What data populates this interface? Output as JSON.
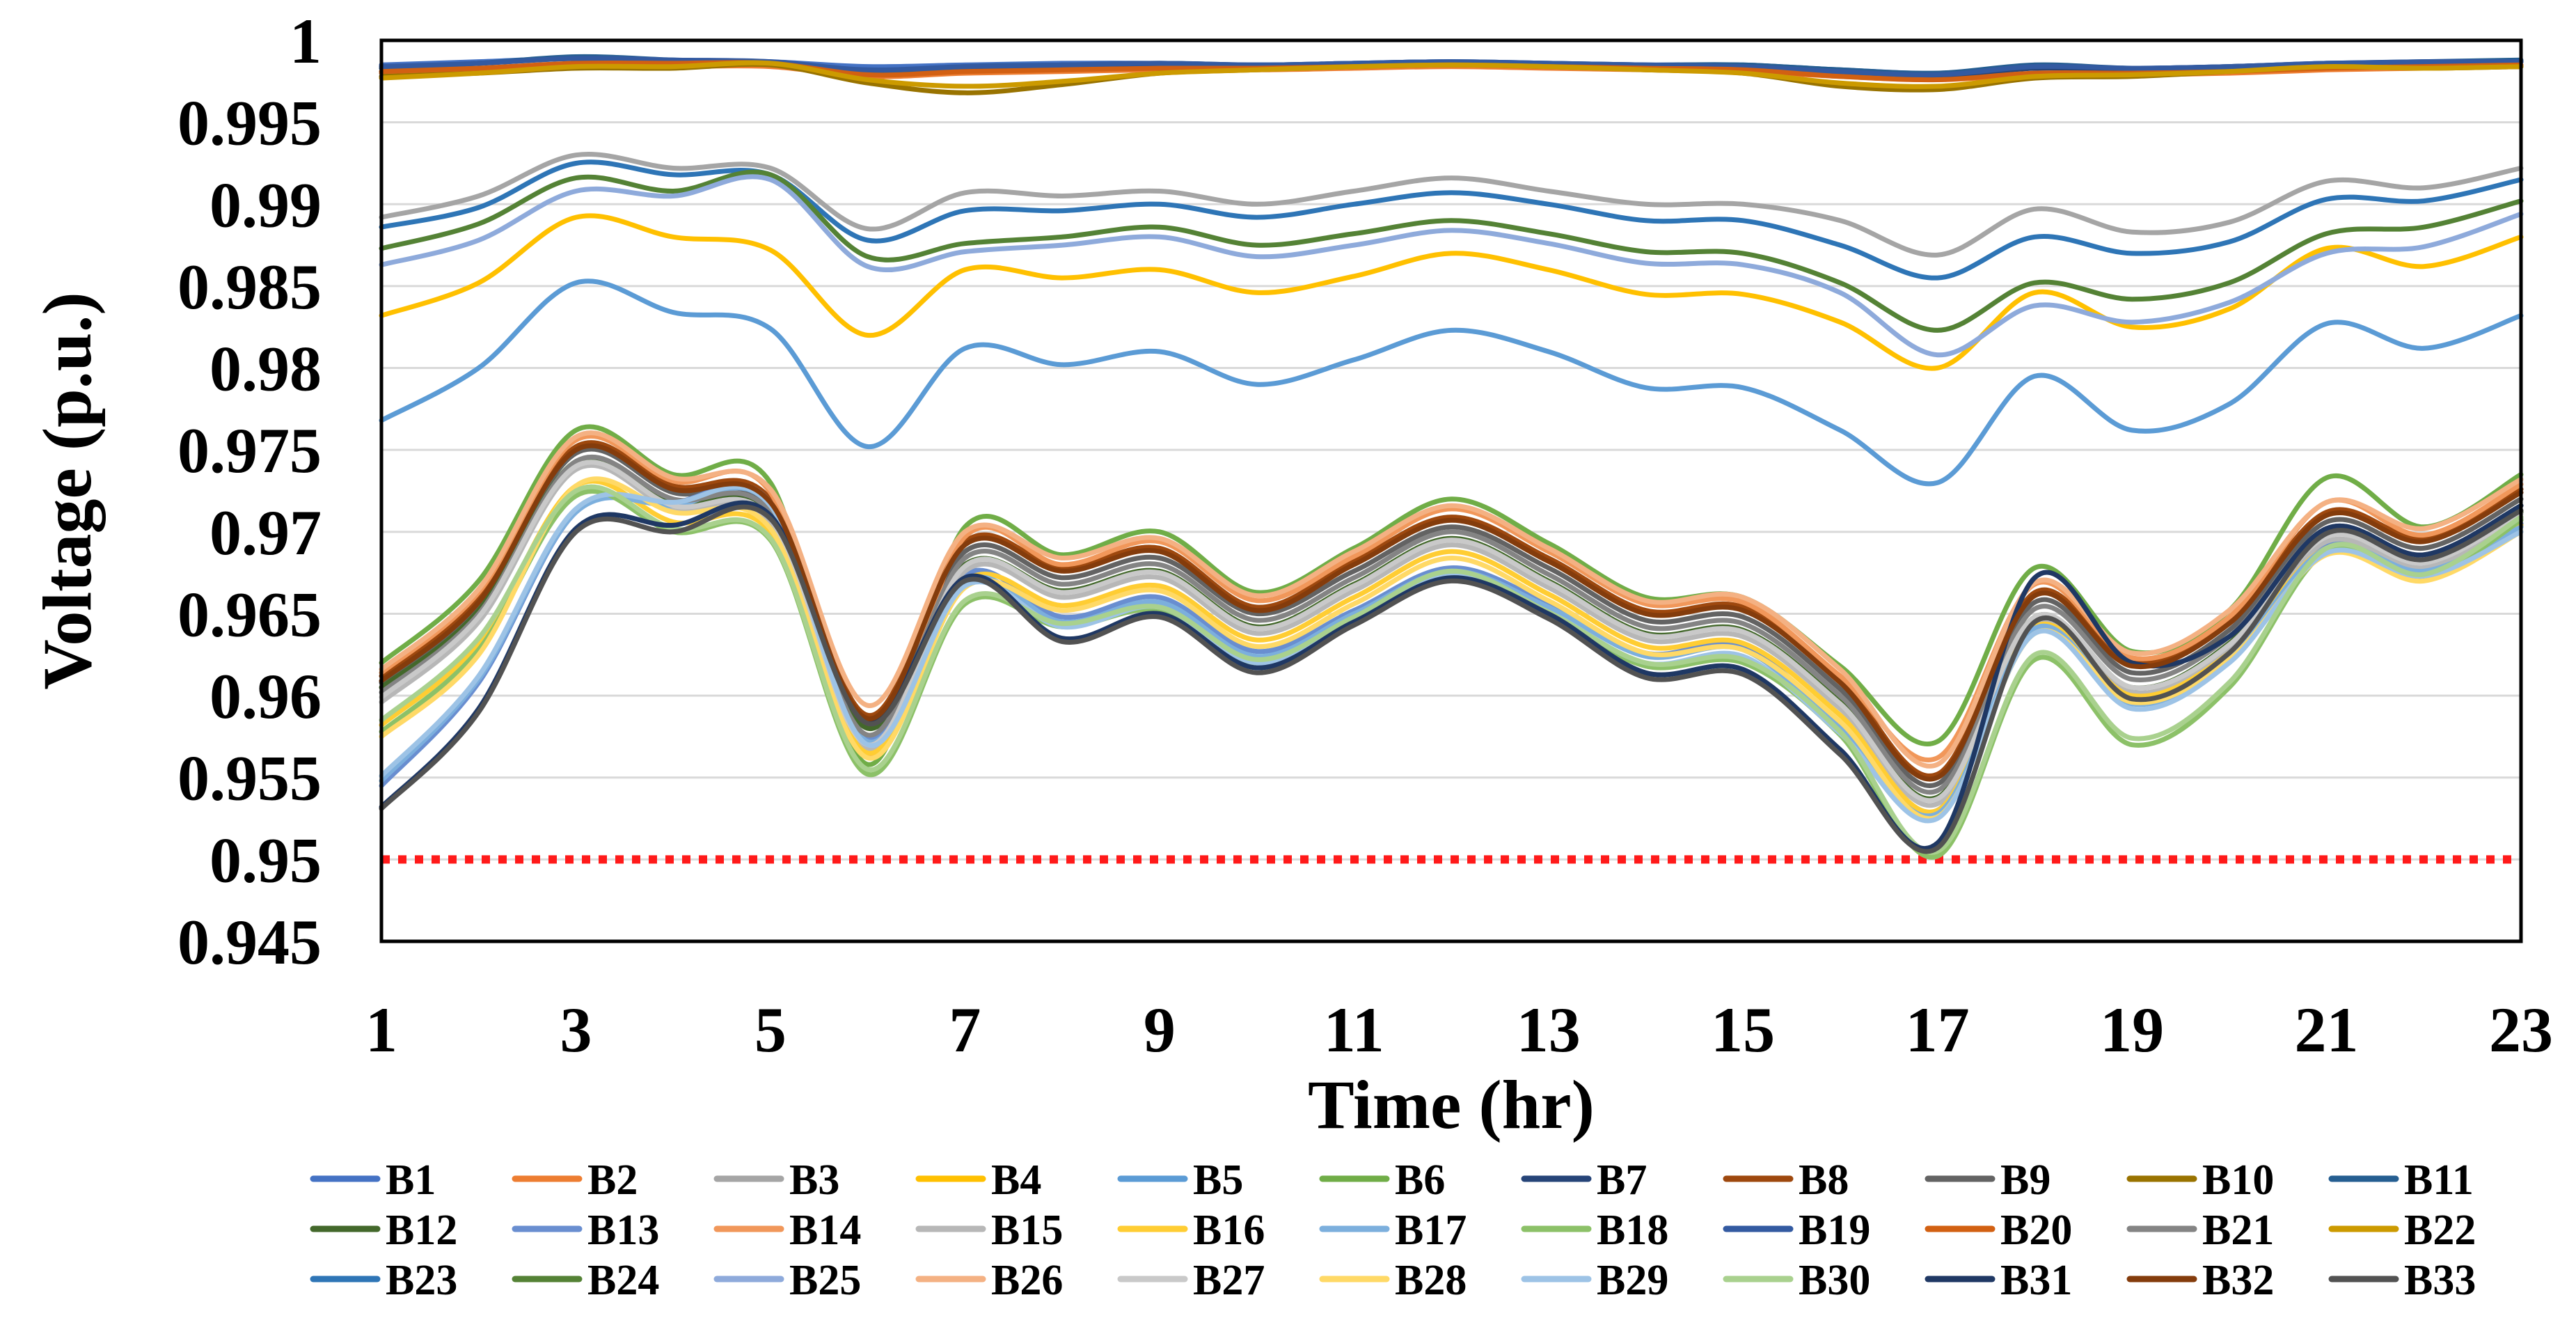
{
  "chart_data": {
    "type": "line",
    "title": "",
    "xlabel": "Time (hr)",
    "ylabel": "Voltage (p.u.)",
    "xlim": [
      1,
      23
    ],
    "ylim": [
      0.945,
      1
    ],
    "x_ticks": [
      "1",
      "3",
      "5",
      "7",
      "9",
      "11",
      "13",
      "15",
      "17",
      "19",
      "21",
      "23"
    ],
    "y_ticks": [
      "0.945",
      "0.95",
      "0.955",
      "0.96",
      "0.965",
      "0.97",
      "0.975",
      "0.98",
      "0.985",
      "0.99",
      "0.995",
      "1"
    ],
    "grid": "horizontal",
    "legend_position": "bottom",
    "limit_line": {
      "value": 0.95,
      "color": "#ff1a1a",
      "style": "dotted"
    },
    "x": [
      1,
      2,
      3,
      4,
      5,
      6,
      7,
      8,
      9,
      10,
      11,
      12,
      13,
      14,
      15,
      16,
      17,
      18,
      19,
      20,
      21,
      22,
      23
    ],
    "series": [
      {
        "name": "B1",
        "color": "#4472c4",
        "values": [
          0.9985,
          0.9987,
          0.9989,
          0.9988,
          0.9987,
          0.9984,
          0.9985,
          0.9986,
          0.9986,
          0.9985,
          0.9986,
          0.9987,
          0.9986,
          0.9985,
          0.9985,
          0.9982,
          0.998,
          0.9984,
          0.9983,
          0.9984,
          0.9986,
          0.9986,
          0.9987
        ]
      },
      {
        "name": "B2",
        "color": "#ed7d31",
        "values": [
          0.998,
          0.9982,
          0.9984,
          0.9984,
          0.9984,
          0.9978,
          0.998,
          0.9981,
          0.9982,
          0.9982,
          0.9983,
          0.9984,
          0.9983,
          0.9982,
          0.9981,
          0.9978,
          0.9976,
          0.9979,
          0.9979,
          0.998,
          0.9982,
          0.9983,
          0.9984
        ]
      },
      {
        "name": "B3",
        "color": "#a5a5a5",
        "values": [
          0.9892,
          0.9905,
          0.993,
          0.9922,
          0.9922,
          0.9885,
          0.9907,
          0.9905,
          0.9908,
          0.99,
          0.9908,
          0.9916,
          0.9908,
          0.99,
          0.99,
          0.989,
          0.9869,
          0.9897,
          0.9883,
          0.9889,
          0.9914,
          0.991,
          0.9922
        ]
      },
      {
        "name": "B4",
        "color": "#ffc000",
        "values": [
          0.9832,
          0.9852,
          0.9892,
          0.988,
          0.9872,
          0.982,
          0.986,
          0.9855,
          0.986,
          0.9846,
          0.9856,
          0.987,
          0.986,
          0.9845,
          0.9845,
          0.9828,
          0.98,
          0.9846,
          0.9825,
          0.9836,
          0.9873,
          0.9862,
          0.988
        ]
      },
      {
        "name": "B5",
        "color": "#5b9bd5",
        "values": [
          0.9768,
          0.98,
          0.9852,
          0.9834,
          0.9824,
          0.9752,
          0.9812,
          0.9802,
          0.981,
          0.979,
          0.9805,
          0.9823,
          0.981,
          0.9788,
          0.9788,
          0.9762,
          0.973,
          0.9795,
          0.9762,
          0.9778,
          0.9827,
          0.9812,
          0.9832
        ]
      },
      {
        "name": "B6",
        "color": "#70ad47",
        "values": [
          0.962,
          0.967,
          0.9762,
          0.9735,
          0.973,
          0.9558,
          0.9703,
          0.9686,
          0.97,
          0.9663,
          0.969,
          0.972,
          0.9693,
          0.966,
          0.966,
          0.9618,
          0.9572,
          0.9678,
          0.9627,
          0.9652,
          0.9733,
          0.9703,
          0.9735
        ]
      },
      {
        "name": "B7",
        "color": "#264478",
        "values": [
          0.9983,
          0.9986,
          0.9989,
          0.9987,
          0.9986,
          0.9981,
          0.9983,
          0.9984,
          0.9985,
          0.9984,
          0.9985,
          0.9986,
          0.9985,
          0.9983,
          0.9983,
          0.998,
          0.9978,
          0.9983,
          0.9982,
          0.9983,
          0.9985,
          0.9986,
          0.9987
        ]
      },
      {
        "name": "B8",
        "color": "#9e480e",
        "values": [
          0.9612,
          0.966,
          0.9752,
          0.9728,
          0.972,
          0.9588,
          0.9694,
          0.9678,
          0.969,
          0.9654,
          0.9682,
          0.9709,
          0.9684,
          0.9652,
          0.9654,
          0.961,
          0.9552,
          0.9663,
          0.962,
          0.9646,
          0.9712,
          0.9696,
          0.9726
        ]
      },
      {
        "name": "B9",
        "color": "#636363",
        "values": [
          0.9608,
          0.9656,
          0.9748,
          0.9724,
          0.9715,
          0.9583,
          0.9688,
          0.9672,
          0.9684,
          0.965,
          0.9676,
          0.9703,
          0.9678,
          0.9646,
          0.9648,
          0.9604,
          0.9546,
          0.9657,
          0.9614,
          0.964,
          0.9706,
          0.969,
          0.972
        ]
      },
      {
        "name": "B10",
        "color": "#997300",
        "values": [
          0.9978,
          0.998,
          0.9983,
          0.9983,
          0.9985,
          0.9974,
          0.9968,
          0.9973,
          0.998,
          0.9982,
          0.9984,
          0.9985,
          0.9984,
          0.9982,
          0.998,
          0.9972,
          0.997,
          0.9977,
          0.9978,
          0.9981,
          0.9984,
          0.9983,
          0.9984
        ]
      },
      {
        "name": "B11",
        "color": "#255e91",
        "values": [
          0.9983,
          0.9986,
          0.999,
          0.9988,
          0.9986,
          0.998,
          0.9984,
          0.9985,
          0.9986,
          0.9985,
          0.9986,
          0.9987,
          0.9986,
          0.9985,
          0.9985,
          0.9982,
          0.998,
          0.9985,
          0.9983,
          0.9984,
          0.9986,
          0.9987,
          0.9988
        ]
      },
      {
        "name": "B12",
        "color": "#43682b",
        "values": [
          0.9605,
          0.9652,
          0.9743,
          0.9718,
          0.971,
          0.958,
          0.968,
          0.9664,
          0.9676,
          0.9642,
          0.9668,
          0.9696,
          0.967,
          0.9638,
          0.964,
          0.9596,
          0.9538,
          0.9648,
          0.9605,
          0.9632,
          0.9698,
          0.9682,
          0.9712
        ]
      },
      {
        "name": "B13",
        "color": "#698ed0",
        "values": [
          0.9545,
          0.9608,
          0.9712,
          0.9718,
          0.9718,
          0.9574,
          0.9674,
          0.9648,
          0.966,
          0.9627,
          0.9652,
          0.9678,
          0.9656,
          0.9626,
          0.963,
          0.9582,
          0.953,
          0.9643,
          0.9597,
          0.9625,
          0.9692,
          0.9678,
          0.9705
        ]
      },
      {
        "name": "B14",
        "color": "#f1975a",
        "values": [
          0.9614,
          0.9663,
          0.9756,
          0.9731,
          0.9724,
          0.9563,
          0.9697,
          0.968,
          0.9694,
          0.9658,
          0.9685,
          0.9714,
          0.9688,
          0.9656,
          0.9657,
          0.9612,
          0.9562,
          0.9668,
          0.9623,
          0.9648,
          0.9718,
          0.9698,
          0.9729
        ]
      },
      {
        "name": "B15",
        "color": "#b7b7b7",
        "values": [
          0.9596,
          0.9645,
          0.9738,
          0.9714,
          0.9706,
          0.9567,
          0.9676,
          0.966,
          0.9672,
          0.9638,
          0.9664,
          0.9692,
          0.9666,
          0.9634,
          0.9636,
          0.9592,
          0.9534,
          0.9645,
          0.9602,
          0.9628,
          0.9694,
          0.9678,
          0.9708
        ]
      },
      {
        "name": "B16",
        "color": "#ffcd33",
        "values": [
          0.9582,
          0.9632,
          0.9728,
          0.9706,
          0.97,
          0.9565,
          0.967,
          0.9655,
          0.9667,
          0.9634,
          0.966,
          0.9688,
          0.9662,
          0.963,
          0.9632,
          0.9588,
          0.953,
          0.9642,
          0.96,
          0.9626,
          0.969,
          0.9674,
          0.9704
        ]
      },
      {
        "name": "B17",
        "color": "#7cafdd",
        "values": [
          0.9548,
          0.961,
          0.9712,
          0.9716,
          0.9716,
          0.9572,
          0.967,
          0.9645,
          0.9657,
          0.9624,
          0.965,
          0.9676,
          0.9654,
          0.9624,
          0.9628,
          0.958,
          0.9528,
          0.9641,
          0.9595,
          0.9623,
          0.969,
          0.9676,
          0.9703
        ]
      },
      {
        "name": "B18",
        "color": "#8cc168",
        "values": [
          0.9578,
          0.9628,
          0.9722,
          0.97,
          0.9695,
          0.9552,
          0.9656,
          0.9642,
          0.9652,
          0.962,
          0.9646,
          0.9674,
          0.9649,
          0.9618,
          0.962,
          0.9576,
          0.9502,
          0.9622,
          0.957,
          0.9605,
          0.9688,
          0.9672,
          0.9707
        ]
      },
      {
        "name": "B19",
        "color": "#335aa1",
        "values": [
          0.9984,
          0.9986,
          0.9989,
          0.9988,
          0.9987,
          0.9982,
          0.9984,
          0.9985,
          0.9986,
          0.9985,
          0.9986,
          0.9987,
          0.9986,
          0.9985,
          0.9984,
          0.9981,
          0.9979,
          0.9984,
          0.9983,
          0.9984,
          0.9986,
          0.9987,
          0.9987
        ]
      },
      {
        "name": "B20",
        "color": "#d26012",
        "values": [
          0.9981,
          0.9983,
          0.9986,
          0.9986,
          0.9986,
          0.9979,
          0.9981,
          0.9982,
          0.9983,
          0.9983,
          0.9984,
          0.9985,
          0.9984,
          0.9983,
          0.9982,
          0.9978,
          0.9976,
          0.998,
          0.998,
          0.9981,
          0.9983,
          0.9984,
          0.9985
        ]
      },
      {
        "name": "B21",
        "color": "#848484",
        "values": [
          0.9602,
          0.965,
          0.9743,
          0.972,
          0.9712,
          0.9576,
          0.9684,
          0.9668,
          0.968,
          0.9646,
          0.9672,
          0.97,
          0.9674,
          0.9642,
          0.9644,
          0.96,
          0.9542,
          0.9653,
          0.961,
          0.9636,
          0.9702,
          0.9686,
          0.9716
        ]
      },
      {
        "name": "B22",
        "color": "#cc9a00",
        "values": [
          0.9977,
          0.998,
          0.9984,
          0.9984,
          0.9986,
          0.9976,
          0.9972,
          0.9975,
          0.998,
          0.9982,
          0.9984,
          0.9985,
          0.9984,
          0.9982,
          0.998,
          0.9974,
          0.9972,
          0.9978,
          0.9979,
          0.9981,
          0.9984,
          0.9983,
          0.9984
        ]
      },
      {
        "name": "B23",
        "color": "#2e75b6",
        "values": [
          0.9886,
          0.9898,
          0.9925,
          0.9918,
          0.9918,
          0.9878,
          0.9896,
          0.9896,
          0.99,
          0.9892,
          0.99,
          0.9907,
          0.99,
          0.989,
          0.989,
          0.9875,
          0.9855,
          0.988,
          0.987,
          0.9877,
          0.9903,
          0.9902,
          0.9915
        ]
      },
      {
        "name": "B24",
        "color": "#548235",
        "values": [
          0.9873,
          0.9888,
          0.9916,
          0.9908,
          0.9918,
          0.9868,
          0.9876,
          0.988,
          0.9886,
          0.9875,
          0.9882,
          0.989,
          0.9882,
          0.9871,
          0.987,
          0.9852,
          0.9823,
          0.9852,
          0.9842,
          0.9852,
          0.9882,
          0.9886,
          0.9902
        ]
      },
      {
        "name": "B25",
        "color": "#8eaadb",
        "values": [
          0.9863,
          0.9878,
          0.9908,
          0.9905,
          0.9915,
          0.9862,
          0.9871,
          0.9875,
          0.988,
          0.9868,
          0.9875,
          0.9884,
          0.9876,
          0.9864,
          0.9863,
          0.9846,
          0.9808,
          0.9838,
          0.9828,
          0.984,
          0.987,
          0.9874,
          0.9894
        ]
      },
      {
        "name": "B26",
        "color": "#f4b183",
        "values": [
          0.9616,
          0.9665,
          0.9758,
          0.9733,
          0.9726,
          0.9594,
          0.97,
          0.9684,
          0.9696,
          0.9661,
          0.9688,
          0.9716,
          0.969,
          0.9658,
          0.966,
          0.9616,
          0.9558,
          0.9669,
          0.9626,
          0.9652,
          0.9718,
          0.9702,
          0.9732
        ]
      },
      {
        "name": "B27",
        "color": "#c9c9c9",
        "values": [
          0.9599,
          0.9648,
          0.974,
          0.9716,
          0.9708,
          0.957,
          0.9679,
          0.9663,
          0.9675,
          0.9641,
          0.9667,
          0.9695,
          0.9669,
          0.9637,
          0.9639,
          0.9595,
          0.9537,
          0.9648,
          0.9605,
          0.9631,
          0.9697,
          0.9681,
          0.9711
        ]
      },
      {
        "name": "B28",
        "color": "#ffd966",
        "values": [
          0.9575,
          0.9625,
          0.9728,
          0.9712,
          0.9702,
          0.9562,
          0.9666,
          0.9652,
          0.9664,
          0.963,
          0.9656,
          0.9684,
          0.9658,
          0.9626,
          0.9628,
          0.9584,
          0.9526,
          0.9638,
          0.9596,
          0.9622,
          0.9686,
          0.967,
          0.97
        ]
      },
      {
        "name": "B29",
        "color": "#9dc3e6",
        "values": [
          0.9551,
          0.9612,
          0.9714,
          0.9718,
          0.9716,
          0.957,
          0.9667,
          0.9642,
          0.9654,
          0.962,
          0.9646,
          0.9673,
          0.9651,
          0.962,
          0.9624,
          0.9577,
          0.9525,
          0.9638,
          0.9592,
          0.962,
          0.9687,
          0.9673,
          0.97
        ]
      },
      {
        "name": "B30",
        "color": "#a9d18e",
        "values": [
          0.9585,
          0.9635,
          0.9725,
          0.9702,
          0.9696,
          0.9555,
          0.9658,
          0.9644,
          0.9654,
          0.9622,
          0.9648,
          0.9676,
          0.9651,
          0.962,
          0.9622,
          0.9578,
          0.9505,
          0.9625,
          0.9574,
          0.9608,
          0.969,
          0.9674,
          0.9709
        ]
      },
      {
        "name": "B31",
        "color": "#1f3864",
        "values": [
          0.9532,
          0.9592,
          0.9702,
          0.9704,
          0.971,
          0.9585,
          0.9672,
          0.9635,
          0.965,
          0.9617,
          0.9645,
          0.9672,
          0.965,
          0.9614,
          0.9616,
          0.9567,
          0.951,
          0.9672,
          0.962,
          0.9636,
          0.9702,
          0.9686,
          0.9716
        ]
      },
      {
        "name": "B32",
        "color": "#843c0c",
        "values": [
          0.9609,
          0.9657,
          0.975,
          0.9726,
          0.9718,
          0.9586,
          0.9692,
          0.9676,
          0.9688,
          0.9652,
          0.968,
          0.9707,
          0.9682,
          0.965,
          0.9652,
          0.9608,
          0.955,
          0.9661,
          0.9618,
          0.9644,
          0.971,
          0.9694,
          0.9724
        ]
      },
      {
        "name": "B33",
        "color": "#525252",
        "values": [
          0.9531,
          0.959,
          0.97,
          0.97,
          0.9708,
          0.9583,
          0.967,
          0.9633,
          0.9648,
          0.9614,
          0.9643,
          0.967,
          0.9647,
          0.9611,
          0.9613,
          0.9564,
          0.9507,
          0.9645,
          0.9598,
          0.9626,
          0.9699,
          0.9683,
          0.9713
        ]
      }
    ]
  }
}
